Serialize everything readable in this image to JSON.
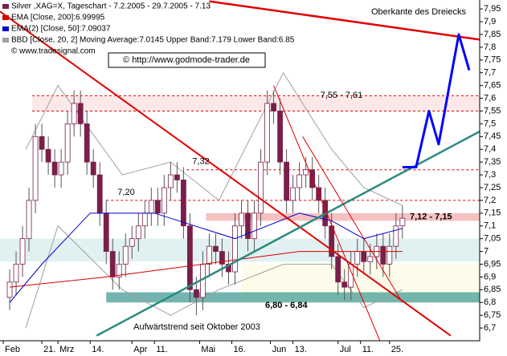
{
  "chart_data": {
    "type": "candlestick",
    "title": "Silver ,XAG=X, Tageschart - 7.2.2005 - 29.7.2005 - 7.13",
    "credit": "© www.tradesignal.com",
    "watermark": "© http://www.godmode-trader.de",
    "up_color": "#ffffff",
    "down_color": "#7a1f4a",
    "wick_color": "#555555",
    "x": [
      0,
      2,
      4,
      6,
      8,
      10,
      12,
      14,
      16,
      18,
      20,
      22,
      24,
      26,
      28,
      30,
      32,
      34,
      36,
      38,
      40,
      42,
      44,
      46,
      48,
      50,
      52,
      54,
      56,
      58,
      60,
      62,
      64,
      66,
      68,
      70,
      72,
      74,
      76,
      78,
      80,
      82,
      84,
      86,
      88,
      90,
      92,
      94,
      96,
      98,
      100,
      102,
      104,
      106,
      108,
      110,
      112,
      114,
      116,
      118,
      120,
      122
    ],
    "open": [
      6.82,
      6.88,
      6.95,
      7.05,
      7.2,
      7.45,
      7.4,
      7.35,
      7.3,
      7.35,
      7.5,
      7.58,
      7.5,
      7.35,
      7.3,
      7.15,
      7.0,
      6.9,
      6.95,
      7.02,
      7.05,
      7.1,
      7.15,
      7.2,
      7.15,
      7.25,
      7.3,
      7.28,
      7.1,
      6.85,
      6.82,
      6.95,
      7.02,
      7.0,
      6.95,
      6.92,
      7.1,
      7.15,
      7.05,
      7.15,
      7.35,
      7.58,
      7.55,
      7.35,
      7.2,
      7.25,
      7.3,
      7.32,
      7.25,
      7.2,
      7.1,
      6.98,
      6.88,
      6.86,
      6.95,
      7.0,
      6.96,
      6.98,
      7.02,
      6.95,
      7.02,
      7.1
    ],
    "high": [
      6.93,
      7.0,
      7.1,
      7.25,
      7.5,
      7.5,
      7.45,
      7.4,
      7.4,
      7.55,
      7.63,
      7.63,
      7.55,
      7.4,
      7.35,
      7.2,
      7.05,
      7.0,
      7.07,
      7.1,
      7.15,
      7.2,
      7.25,
      7.25,
      7.3,
      7.35,
      7.35,
      7.33,
      7.15,
      6.9,
      7.0,
      7.07,
      7.07,
      7.05,
      7.0,
      7.15,
      7.2,
      7.2,
      7.2,
      7.4,
      7.63,
      7.63,
      7.6,
      7.4,
      7.3,
      7.35,
      7.37,
      7.37,
      7.3,
      7.25,
      7.15,
      7.03,
      6.93,
      7.0,
      7.05,
      7.05,
      7.03,
      7.07,
      7.07,
      7.07,
      7.15,
      7.18
    ],
    "low": [
      6.77,
      6.83,
      6.9,
      7.0,
      7.15,
      7.35,
      7.3,
      7.25,
      7.25,
      7.3,
      7.45,
      7.45,
      7.3,
      7.25,
      7.1,
      6.95,
      6.85,
      6.85,
      6.9,
      6.97,
      7.0,
      7.05,
      7.1,
      7.1,
      7.1,
      7.2,
      7.23,
      7.05,
      6.8,
      6.75,
      6.77,
      6.9,
      6.95,
      6.9,
      6.87,
      6.87,
      7.05,
      7.0,
      7.0,
      7.1,
      7.3,
      7.5,
      7.3,
      7.15,
      7.15,
      7.2,
      7.25,
      7.2,
      7.15,
      7.05,
      6.93,
      6.83,
      6.81,
      6.81,
      6.9,
      6.91,
      6.91,
      6.93,
      6.9,
      6.9,
      6.97,
      7.05
    ],
    "close": [
      6.88,
      6.95,
      7.05,
      7.2,
      7.45,
      7.4,
      7.35,
      7.3,
      7.35,
      7.5,
      7.58,
      7.5,
      7.35,
      7.3,
      7.15,
      7.0,
      6.9,
      6.95,
      7.02,
      7.05,
      7.1,
      7.15,
      7.2,
      7.15,
      7.25,
      7.3,
      7.28,
      7.1,
      6.85,
      6.82,
      6.95,
      7.02,
      7.0,
      6.95,
      6.92,
      7.1,
      7.15,
      7.05,
      7.15,
      7.35,
      7.58,
      7.55,
      7.35,
      7.2,
      7.25,
      7.3,
      7.32,
      7.25,
      7.2,
      7.1,
      6.98,
      6.88,
      6.86,
      6.95,
      7.0,
      6.96,
      6.98,
      7.02,
      6.95,
      7.02,
      7.1,
      7.13
    ],
    "series": [
      {
        "name": "EMA [Close, 200]:6.99995",
        "color": "#d40000",
        "x": [
          0,
          30,
          60,
          90,
          122
        ],
        "values": [
          6.86,
          6.9,
          6.95,
          7.0,
          7.0
        ]
      },
      {
        "name": "EMA(2) [Close, 50]:7.09037",
        "color": "#0000cc",
        "x": [
          0,
          10,
          25,
          45,
          70,
          90,
          100,
          110,
          122
        ],
        "values": [
          6.8,
          6.95,
          7.15,
          7.15,
          7.05,
          7.15,
          7.12,
          7.05,
          7.09
        ]
      }
    ],
    "bands": {
      "name": "BBD [Close, 20, 2] Moving Average:7.0145 Upper Band:7.179 Lower Band:6.85",
      "color": "#a0a0a0",
      "x": [
        5,
        15,
        35,
        50,
        65,
        85,
        100,
        110,
        122
      ],
      "upper": [
        7.4,
        7.65,
        7.3,
        7.35,
        7.2,
        7.7,
        7.4,
        7.25,
        7.18
      ],
      "lower": [
        6.7,
        7.1,
        6.85,
        6.75,
        6.85,
        6.95,
        6.95,
        6.78,
        6.85
      ]
    },
    "zones": [
      {
        "low": 7.55,
        "high": 7.61,
        "start": 7,
        "color": "#fbe4e4",
        "label": "7,55 - 7,61"
      },
      {
        "low": 6.96,
        "high": 7.05,
        "start": -3,
        "color": "#dcefef"
      },
      {
        "low": 6.8,
        "high": 6.95,
        "start": 72,
        "color": "#fdfbe6"
      },
      {
        "low": 7.12,
        "high": 7.15,
        "start": 61,
        "color": "#f4b6b6",
        "label": "7,12 - 7,15"
      },
      {
        "low": 6.8,
        "high": 6.84,
        "start": 30,
        "color": "#5aa8a0",
        "label": "6,80 - 6,84"
      }
    ],
    "levels": [
      {
        "value": 7.61,
        "start": 7
      },
      {
        "value": 7.55,
        "start": 7
      },
      {
        "value": 7.32,
        "start": 55,
        "label": "7,32"
      },
      {
        "value": 7.2,
        "start": 30,
        "label": "7,20"
      }
    ],
    "trendlines": [
      {
        "color": "#e00000",
        "width": 2.5,
        "x": [
          62,
          146
        ],
        "values": [
          7.98,
          7.83
        ]
      },
      {
        "color": "#e00000",
        "width": 2,
        "x": [
          -3,
          137
        ],
        "values": [
          7.94,
          6.67
        ]
      },
      {
        "color": "#2a8a80",
        "width": 2.5,
        "x": [
          27,
          146
        ],
        "values": [
          6.67,
          7.47
        ]
      },
      {
        "color": "#e00000",
        "width": 1,
        "x": [
          82,
          115
        ],
        "values": [
          7.65,
          6.65
        ]
      },
      {
        "color": "#e00000",
        "width": 1,
        "x": [
          91,
          122
        ],
        "values": [
          7.45,
          6.8
        ]
      },
      {
        "color": "#0000ff",
        "width": 3,
        "x": [
          122,
          126.25,
          130.25,
          133.25,
          139.5,
          142.75
        ],
        "values": [
          7.33,
          7.33,
          7.55,
          7.42,
          7.85,
          7.71
        ]
      }
    ],
    "annotations": [
      "Oberkante des Dreiecks",
      "Aufwärtstrend seit Oktober 2003"
    ],
    "xlim": [
      -3,
      146
    ],
    "ylim": [
      6.65,
      7.985
    ],
    "xticks": [
      {
        "value": -2,
        "label": "Feb"
      },
      {
        "value": 10,
        "label": "21."
      },
      {
        "value": 15,
        "label": "Mrz"
      },
      {
        "value": 25,
        "label": "14."
      },
      {
        "value": 38,
        "label": "Apr"
      },
      {
        "value": 45,
        "label": "11."
      },
      {
        "value": 59,
        "label": "Mai"
      },
      {
        "value": 69,
        "label": "16."
      },
      {
        "value": 81,
        "label": "Jun"
      },
      {
        "value": 88,
        "label": "13."
      },
      {
        "value": 102,
        "label": "Jul"
      },
      {
        "value": 109,
        "label": "11."
      },
      {
        "value": 118,
        "label": "25."
      }
    ],
    "yticks": [
      {
        "value": 6.7,
        "label": "6,7"
      },
      {
        "value": 6.75,
        "label": "6,75"
      },
      {
        "value": 6.8,
        "label": "6,8"
      },
      {
        "value": 6.85,
        "label": "6,85"
      },
      {
        "value": 6.9,
        "label": "6,9"
      },
      {
        "value": 6.95,
        "label": "6,95"
      },
      {
        "value": 7,
        "label": "7"
      },
      {
        "value": 7.05,
        "label": "7,05"
      },
      {
        "value": 7.1,
        "label": "7,1"
      },
      {
        "value": 7.15,
        "label": "7,15"
      },
      {
        "value": 7.2,
        "label": "7,2"
      },
      {
        "value": 7.25,
        "label": "7,25"
      },
      {
        "value": 7.3,
        "label": "7,3"
      },
      {
        "value": 7.35,
        "label": "7,35"
      },
      {
        "value": 7.4,
        "label": "7,4"
      },
      {
        "value": 7.45,
        "label": "7,45"
      },
      {
        "value": 7.5,
        "label": "7,5"
      },
      {
        "value": 7.55,
        "label": "7,55"
      },
      {
        "value": 7.6,
        "label": "7,6"
      },
      {
        "value": 7.65,
        "label": "7,65"
      },
      {
        "value": 7.7,
        "label": "7,7"
      },
      {
        "value": 7.75,
        "label": "7,75"
      },
      {
        "value": 7.8,
        "label": "7,8"
      },
      {
        "value": 7.85,
        "label": "7,85"
      },
      {
        "value": 7.9,
        "label": "7,9"
      },
      {
        "value": 7.95,
        "label": "7,95"
      }
    ]
  }
}
